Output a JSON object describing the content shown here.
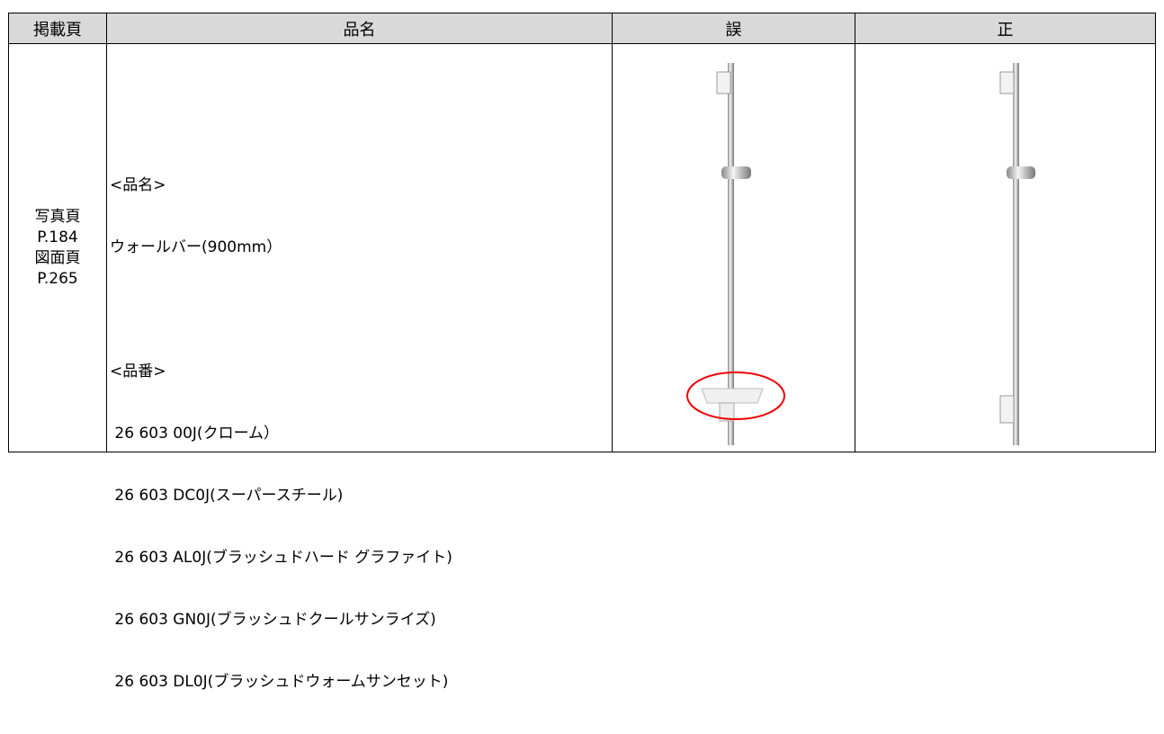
{
  "table": {
    "headers": [
      "掲載頁",
      "品名",
      "誤",
      "正"
    ],
    "page_cell": [
      "写真頁",
      "P.184",
      "図面頁",
      "P.265"
    ],
    "name_cell": {
      "name_label": "<品名>",
      "name": "ウォールバー(900mm）",
      "number_label": "<品番>",
      "numbers": [
        " 26 603 00J(クローム）",
        " 26 603 DC0J(スーパースチール)",
        " 26 603 AL0J(ブラッシュドハード グラファイト)",
        " 26 603 GN0J(ブラッシュドクールサンライズ)",
        " 26 603 DL0J(ブラッシュドウォームサンセット)"
      ]
    }
  }
}
